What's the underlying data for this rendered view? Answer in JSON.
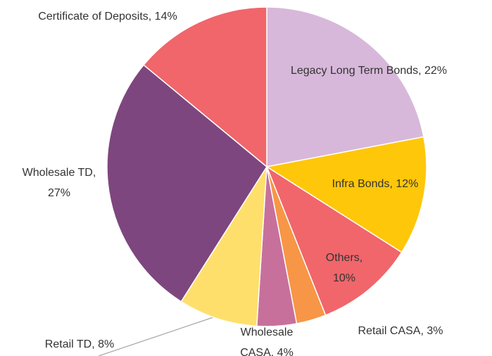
{
  "chart_data": {
    "type": "pie",
    "values": [
      22,
      12,
      10,
      3,
      4,
      8,
      27,
      14
    ],
    "value_labels": [
      [
        "Legacy Long Term Bonds, 22%"
      ],
      [
        "Infra Bonds, 12%"
      ],
      [
        "Others,",
        "10%"
      ],
      [
        "Retail CASA, 3%"
      ],
      [
        "Wholesale",
        "CASA, 4%"
      ],
      [
        "Retail TD, 8%"
      ],
      [
        "Wholesale TD,",
        "27%"
      ],
      [
        "Certificate of Deposits, 14%"
      ]
    ],
    "colors": [
      "#d7b8da",
      "#ffc70a",
      "#f0666b",
      "#f79646",
      "#c8709c",
      "#ffdf6b",
      "#7e467e",
      "#f0666b"
    ]
  }
}
